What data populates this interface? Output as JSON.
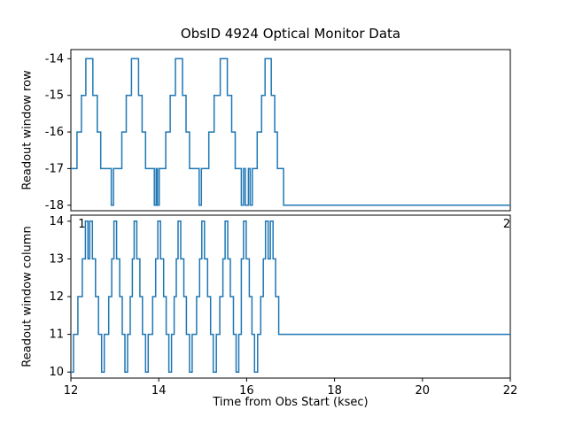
{
  "figure": {
    "title": "ObsID 4924 Optical Monitor Data",
    "xlabel": "Time from Obs Start (ksec)",
    "background": "#ffffff",
    "line_color": "#1f77b4",
    "axis_color": "#000000",
    "line_width": 1.5
  },
  "x_axis": {
    "lim": [
      12,
      22
    ],
    "ticks": [
      12,
      14,
      16,
      18,
      20,
      22
    ]
  },
  "chart_data": [
    {
      "type": "line",
      "series_name": "readout-window-row",
      "ylabel": "Readout window row",
      "ylim": [
        -18.15,
        -13.75
      ],
      "yticks": [
        -14,
        -15,
        -16,
        -17,
        -18
      ],
      "step": "post",
      "grid": false,
      "points": [
        [
          12.0,
          -17
        ],
        [
          12.14,
          -16
        ],
        [
          12.24,
          -15
        ],
        [
          12.34,
          -14
        ],
        [
          12.5,
          -15
        ],
        [
          12.6,
          -16
        ],
        [
          12.68,
          -17
        ],
        [
          12.92,
          -18
        ],
        [
          12.97,
          -17
        ],
        [
          13.16,
          -16
        ],
        [
          13.26,
          -15
        ],
        [
          13.38,
          -14
        ],
        [
          13.54,
          -15
        ],
        [
          13.62,
          -16
        ],
        [
          13.7,
          -17
        ],
        [
          13.9,
          -18
        ],
        [
          13.94,
          -17
        ],
        [
          13.97,
          -18
        ],
        [
          14.01,
          -17
        ],
        [
          14.16,
          -16
        ],
        [
          14.26,
          -15
        ],
        [
          14.38,
          -14
        ],
        [
          14.54,
          -15
        ],
        [
          14.62,
          -16
        ],
        [
          14.7,
          -17
        ],
        [
          14.92,
          -18
        ],
        [
          14.97,
          -17
        ],
        [
          15.14,
          -16
        ],
        [
          15.26,
          -15
        ],
        [
          15.4,
          -14
        ],
        [
          15.56,
          -15
        ],
        [
          15.66,
          -16
        ],
        [
          15.74,
          -17
        ],
        [
          15.88,
          -18
        ],
        [
          15.93,
          -17
        ],
        [
          15.97,
          -18
        ],
        [
          16.04,
          -17
        ],
        [
          16.08,
          -18
        ],
        [
          16.13,
          -17
        ],
        [
          16.24,
          -16
        ],
        [
          16.34,
          -15
        ],
        [
          16.42,
          -14
        ],
        [
          16.56,
          -15
        ],
        [
          16.64,
          -16
        ],
        [
          16.7,
          -17
        ],
        [
          16.84,
          -18
        ],
        [
          22.0,
          -18
        ]
      ]
    },
    {
      "type": "line",
      "series_name": "readout-window-column",
      "ylabel": "Readout window column",
      "ylim": [
        9.84,
        14.16
      ],
      "yticks": [
        14,
        13,
        12,
        11,
        10
      ],
      "step": "post",
      "grid": false,
      "annotations": [
        {
          "text": "1",
          "x": 12.25,
          "y": 13.93
        },
        {
          "text": "2",
          "x": 21.92,
          "y": 13.93
        }
      ],
      "points": [
        [
          12.0,
          10
        ],
        [
          12.06,
          11
        ],
        [
          12.16,
          12
        ],
        [
          12.26,
          13
        ],
        [
          12.33,
          14
        ],
        [
          12.39,
          13
        ],
        [
          12.43,
          14
        ],
        [
          12.49,
          13
        ],
        [
          12.56,
          12
        ],
        [
          12.63,
          11
        ],
        [
          12.7,
          10
        ],
        [
          12.76,
          11
        ],
        [
          12.86,
          12
        ],
        [
          12.93,
          13
        ],
        [
          12.98,
          14
        ],
        [
          13.04,
          13
        ],
        [
          13.11,
          12
        ],
        [
          13.17,
          11
        ],
        [
          13.23,
          10
        ],
        [
          13.29,
          11
        ],
        [
          13.35,
          12
        ],
        [
          13.4,
          13
        ],
        [
          13.44,
          14
        ],
        [
          13.5,
          13
        ],
        [
          13.57,
          12
        ],
        [
          13.63,
          11
        ],
        [
          13.7,
          10
        ],
        [
          13.76,
          11
        ],
        [
          13.86,
          12
        ],
        [
          13.93,
          13
        ],
        [
          13.98,
          14
        ],
        [
          14.04,
          13
        ],
        [
          14.11,
          12
        ],
        [
          14.17,
          11
        ],
        [
          14.23,
          10
        ],
        [
          14.29,
          11
        ],
        [
          14.35,
          12
        ],
        [
          14.4,
          13
        ],
        [
          14.44,
          14
        ],
        [
          14.5,
          13
        ],
        [
          14.57,
          12
        ],
        [
          14.63,
          11
        ],
        [
          14.7,
          10
        ],
        [
          14.76,
          11
        ],
        [
          14.86,
          12
        ],
        [
          14.93,
          13
        ],
        [
          14.98,
          14
        ],
        [
          15.04,
          13
        ],
        [
          15.11,
          12
        ],
        [
          15.18,
          11
        ],
        [
          15.24,
          10
        ],
        [
          15.31,
          11
        ],
        [
          15.39,
          12
        ],
        [
          15.46,
          13
        ],
        [
          15.51,
          14
        ],
        [
          15.57,
          13
        ],
        [
          15.63,
          12
        ],
        [
          15.7,
          11
        ],
        [
          15.76,
          10
        ],
        [
          15.82,
          11
        ],
        [
          15.88,
          13
        ],
        [
          15.93,
          14
        ],
        [
          15.99,
          13
        ],
        [
          16.06,
          12
        ],
        [
          16.12,
          11
        ],
        [
          16.18,
          10
        ],
        [
          16.25,
          11
        ],
        [
          16.32,
          12
        ],
        [
          16.38,
          13
        ],
        [
          16.43,
          14
        ],
        [
          16.49,
          13
        ],
        [
          16.54,
          14
        ],
        [
          16.6,
          13
        ],
        [
          16.66,
          12
        ],
        [
          16.73,
          11
        ],
        [
          22.0,
          11
        ]
      ]
    }
  ]
}
